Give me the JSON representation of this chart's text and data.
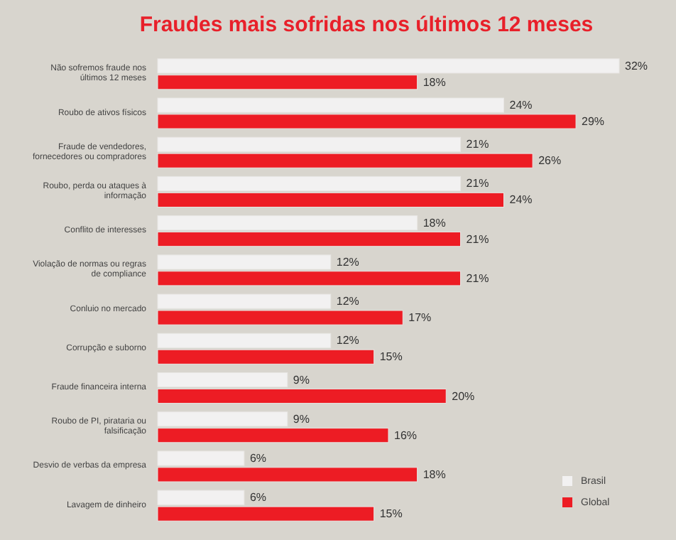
{
  "chart_data": {
    "type": "bar",
    "orientation": "horizontal",
    "title": "Fraudes mais sofridas nos últimos 12 meses",
    "categories": [
      "Não sofremos fraude nos últimos 12 meses",
      "Roubo de ativos físicos",
      "Fraude de vendedores, fornecedores ou compradores",
      "Roubo, perda ou ataques à informação",
      "Conflito de interesses",
      "Violação de normas ou regras de compliance",
      "Conluio no mercado",
      "Corrupção e suborno",
      "Fraude financeira interna",
      "Roubo de PI, pirataria ou falsificação",
      "Desvio de verbas da empresa",
      "Lavagem de dinheiro"
    ],
    "series": [
      {
        "name": "Brasil",
        "color": "#f2f1f1",
        "values": [
          32,
          24,
          21,
          21,
          18,
          12,
          12,
          12,
          9,
          9,
          6,
          6
        ],
        "value_labels": [
          "32%",
          "24%",
          "21%",
          "21%",
          "18%",
          "12%",
          "12%",
          "12%",
          "9%",
          "9%",
          "6%",
          "6%"
        ]
      },
      {
        "name": "Global",
        "color": "#ed1c24",
        "values": [
          18,
          29,
          26,
          24,
          21,
          21,
          17,
          15,
          20,
          16,
          18,
          15
        ],
        "value_labels": [
          "18%",
          "29%",
          "26%",
          "24%",
          "21%",
          "21%",
          "17%",
          "15%",
          "20%",
          "16%",
          "18%",
          "15%"
        ]
      }
    ],
    "legend": "bottom right",
    "tick_labels": "y"
  }
}
